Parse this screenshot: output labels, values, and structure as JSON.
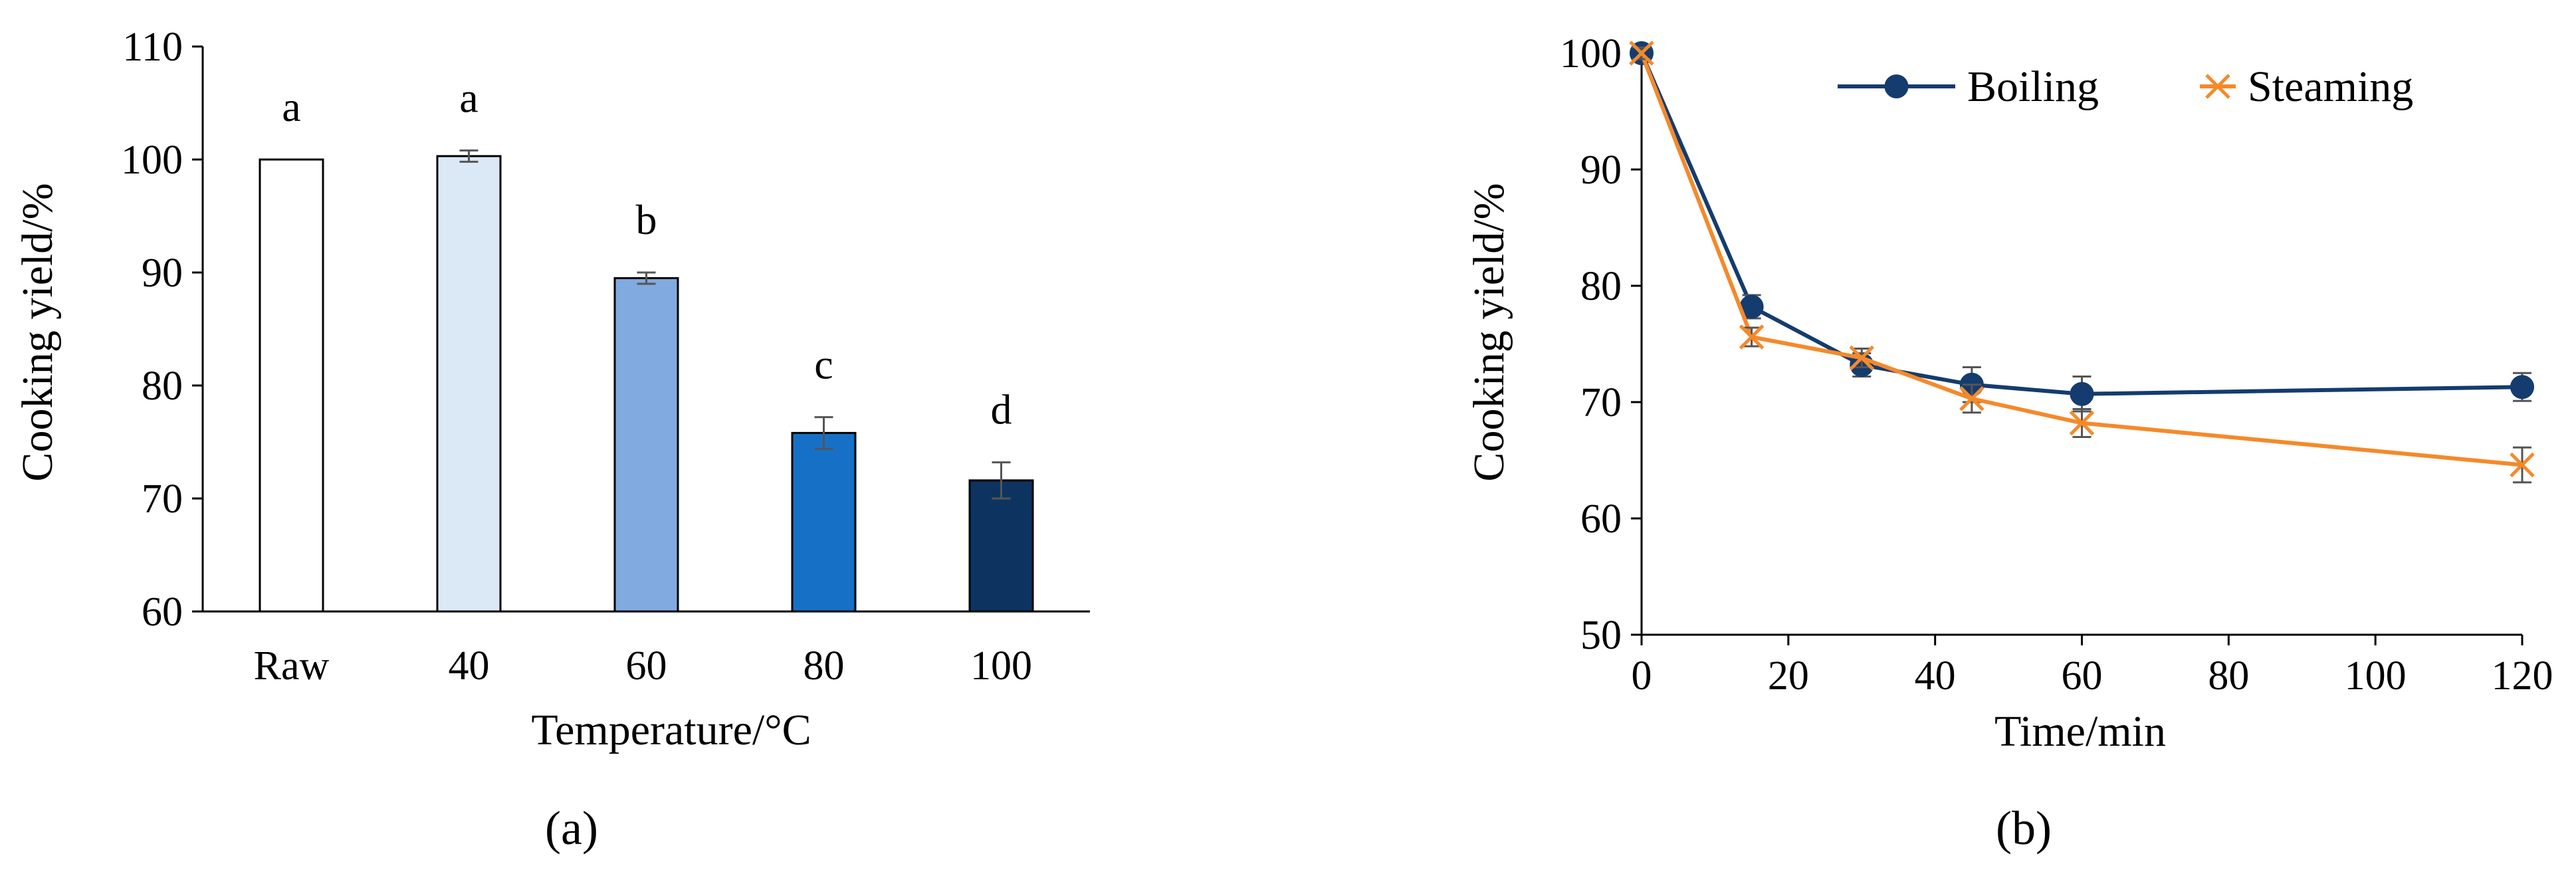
{
  "chart_data": [
    {
      "type": "bar",
      "panel_label": "(a)",
      "xlabel": "Temperature/°C",
      "ylabel": "Cooking yield/%",
      "categories": [
        "Raw",
        "40",
        "60",
        "80",
        "100"
      ],
      "values": [
        100.0,
        100.3,
        89.5,
        75.8,
        71.6
      ],
      "errors": [
        0.0,
        0.5,
        0.5,
        1.4,
        1.6
      ],
      "significance_letters": [
        "a",
        "a",
        "b",
        "c",
        "d"
      ],
      "bar_colors": [
        "#ffffff",
        "#dbe8f6",
        "#80aae0",
        "#1671c6",
        "#0d3461"
      ],
      "ylim": [
        60,
        110
      ],
      "yticks": [
        60,
        70,
        80,
        90,
        100,
        110
      ],
      "grid": false
    },
    {
      "type": "line",
      "panel_label": "(b)",
      "xlabel": "Time/min",
      "ylabel": "Cooking yield/%",
      "xlim": [
        0,
        120
      ],
      "ylim": [
        50,
        100
      ],
      "xticks": [
        0,
        20,
        40,
        60,
        80,
        100,
        120
      ],
      "yticks": [
        50,
        60,
        70,
        80,
        90,
        100
      ],
      "grid": false,
      "legend_position": "top-right",
      "series": [
        {
          "name": "Boiling",
          "color": "#143c6e",
          "marker": "circle",
          "x": [
            0,
            15,
            30,
            45,
            60,
            120
          ],
          "y": [
            100.0,
            78.2,
            73.2,
            71.5,
            70.7,
            71.3
          ],
          "errors": [
            0.5,
            1.0,
            1.0,
            1.5,
            1.5,
            1.2
          ]
        },
        {
          "name": "Steaming",
          "color": "#f5892a",
          "marker": "x",
          "x": [
            0,
            15,
            30,
            45,
            60,
            120
          ],
          "y": [
            100.0,
            75.6,
            73.8,
            70.3,
            68.2,
            64.6
          ],
          "errors": [
            0.5,
            0.8,
            0.8,
            1.2,
            1.2,
            1.5
          ]
        }
      ]
    }
  ]
}
